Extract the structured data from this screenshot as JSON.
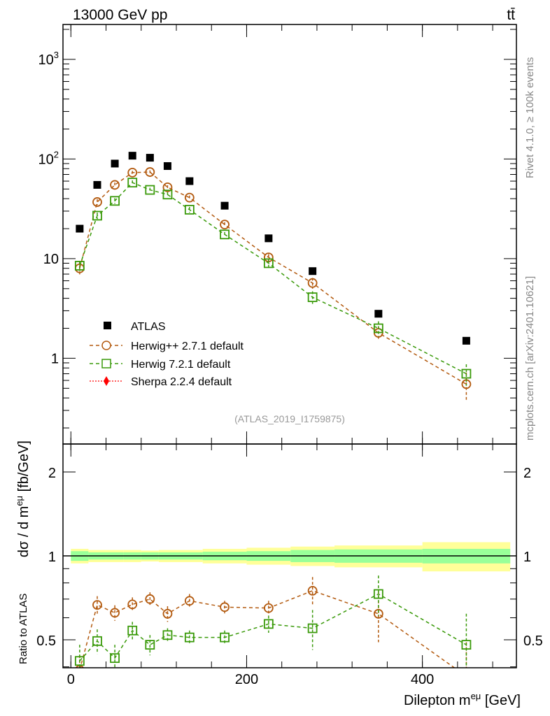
{
  "header": {
    "energy_label": "13000 GeV pp",
    "process_label": "tt̄"
  },
  "side": {
    "rivet": "Rivet 4.1.0, ≥ 100k events",
    "mcplots": "mcplots.cern.ch [arXiv:2401.10621]"
  },
  "analysis_id": "(ATLAS_2019_I1759875)",
  "colors": {
    "data": "#000000",
    "herwigpp": "#b35a0f",
    "herwig7": "#3a9a0a",
    "sherpa": "#ff0000",
    "band_outer": "#ffff99",
    "band_inner": "#99ff99"
  },
  "chart_data": [
    {
      "type": "scatter",
      "title": "",
      "ylabel": "dσ / d m^eμ [fb/GeV]",
      "yscale": "log",
      "ylim": [
        0.138,
        2240
      ],
      "xlim": [
        -9,
        507
      ],
      "ytick_labels": [
        "1",
        "10",
        "10^2",
        "10^3"
      ],
      "ytick_values": [
        1,
        10,
        100,
        1000
      ],
      "x": [
        10,
        30,
        50,
        70,
        90,
        110,
        135,
        175,
        225,
        275,
        350,
        450
      ],
      "series": [
        {
          "name": "ATLAS",
          "marker": "square-filled",
          "values": [
            20,
            55,
            90,
            108,
            103,
            85,
            60,
            34,
            16,
            7.5,
            2.8,
            1.5
          ],
          "errors": [
            0.5,
            1,
            1.5,
            1.5,
            1.5,
            1.5,
            1,
            0.6,
            0.3,
            0.2,
            0.08,
            0.06
          ]
        },
        {
          "name": "Herwig++ 2.7.1 default",
          "marker": "circle-open",
          "values": [
            8,
            37,
            55,
            73,
            74,
            52,
            41,
            22,
            10.3,
            5.7,
            1.8,
            0.55
          ],
          "errors": [
            1.3,
            2.5,
            3,
            3,
            3,
            2.5,
            2,
            1.2,
            0.8,
            0.7,
            0.3,
            0.17
          ]
        },
        {
          "name": "Herwig 7.2.1 default",
          "marker": "square-open",
          "values": [
            8.5,
            27,
            38,
            58,
            49,
            44,
            31,
            17.5,
            9,
            4.1,
            2.0,
            0.7
          ],
          "errors": [
            1.0,
            2,
            2.5,
            3,
            2.5,
            2.5,
            2,
            1,
            0.7,
            0.6,
            0.35,
            0.17
          ]
        },
        {
          "name": "Sherpa 2.2.4 default",
          "marker": "diamond-filled",
          "values": [],
          "errors": []
        }
      ],
      "legend_position": "lower-left"
    },
    {
      "type": "scatter",
      "ylabel": "Ratio to ATLAS",
      "xlabel": "Dilepton m^eμ [GeV]",
      "yscale": "log",
      "ylim": [
        0.397,
        2.52
      ],
      "xlim": [
        -9,
        507
      ],
      "ytick_labels": [
        "0.5",
        "1",
        "2"
      ],
      "ytick_values": [
        0.5,
        1,
        2
      ],
      "xtick_labels": [
        "0",
        "200",
        "400"
      ],
      "xtick_values": [
        0,
        200,
        400
      ],
      "bin_edges": [
        0,
        20,
        40,
        60,
        80,
        100,
        120,
        150,
        200,
        250,
        300,
        400,
        500
      ],
      "band_total_pct": [
        6,
        5,
        5,
        5,
        4.5,
        5,
        5,
        6,
        7,
        8,
        9,
        12
      ],
      "band_stat_pct": [
        4,
        3,
        3,
        3,
        3,
        3,
        3,
        3.5,
        4,
        5,
        5.5,
        6
      ],
      "x": [
        10,
        30,
        50,
        70,
        90,
        110,
        135,
        175,
        225,
        275,
        350,
        450
      ],
      "series": [
        {
          "name": "Herwig++ 2.7.1 default",
          "values": [
            0.39,
            0.667,
            0.625,
            0.67,
            0.7,
            0.62,
            0.69,
            0.655,
            0.65,
            0.75,
            0.62,
            0.37
          ],
          "errors": [
            0.05,
            0.05,
            0.04,
            0.04,
            0.04,
            0.04,
            0.04,
            0.035,
            0.04,
            0.09,
            0.13,
            0.12
          ]
        },
        {
          "name": "Herwig 7.2.1 default",
          "values": [
            0.42,
            0.495,
            0.43,
            0.54,
            0.48,
            0.52,
            0.51,
            0.51,
            0.57,
            0.55,
            0.73,
            0.48
          ],
          "errors": [
            0.06,
            0.05,
            0.05,
            0.04,
            0.04,
            0.03,
            0.03,
            0.03,
            0.04,
            0.09,
            0.12,
            0.14
          ]
        }
      ]
    }
  ]
}
